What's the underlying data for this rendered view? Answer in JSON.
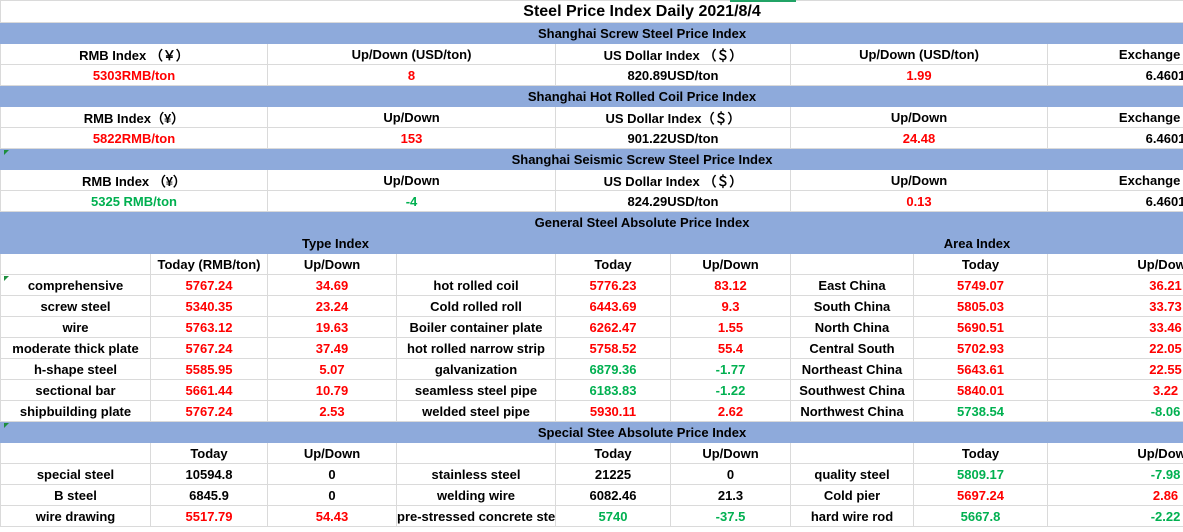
{
  "title": "Steel Price Index Daily  2021/8/4",
  "sections": {
    "screw": {
      "header": "Shanghai Screw Steel Price Index",
      "labels": [
        "RMB Index （￥）",
        "Up/Down (USD/ton)",
        "US Dollar Index （＄）",
        "Up/Down (USD/ton)",
        "Exchange Rate"
      ],
      "values": [
        "5303RMB/ton",
        "8",
        "820.89USD/ton",
        "1.99",
        "6.4601"
      ]
    },
    "hrc": {
      "header": "Shanghai Hot Rolled Coil Price Index",
      "labels": [
        "RMB Index（¥）",
        "Up/Down",
        "US Dollar Index（＄）",
        "Up/Down",
        "Exchange Rate"
      ],
      "values": [
        "5822RMB/ton",
        "153",
        "901.22USD/ton",
        "24.48",
        "6.4601"
      ]
    },
    "seismic": {
      "header": "Shanghai Seismic Screw Steel Price Index",
      "labels": [
        "RMB Index （¥）",
        "Up/Down",
        "US Dollar Index （＄）",
        "Up/Down",
        "Exchange Rate"
      ],
      "values": [
        "5325 RMB/ton",
        "-4",
        "824.29USD/ton",
        "0.13",
        "6.4601"
      ]
    }
  },
  "general": {
    "header": "General Steel Absolute Price Index",
    "type_index": "Type Index",
    "area_index": "Area Index",
    "col_today_rmb": "Today (RMB/ton)",
    "col_today": "Today",
    "col_updown": "Up/Down",
    "type_rows": [
      {
        "name": "comprehensive",
        "today": "5767.24",
        "change": "34.69"
      },
      {
        "name": "screw steel",
        "today": "5340.35",
        "change": "23.24"
      },
      {
        "name": "wire",
        "today": "5763.12",
        "change": "19.63"
      },
      {
        "name": "moderate thick plate",
        "today": "5767.24",
        "change": "37.49"
      },
      {
        "name": "h-shape steel",
        "today": "5585.95",
        "change": "5.07"
      },
      {
        "name": "sectional bar",
        "today": "5661.44",
        "change": "10.79"
      },
      {
        "name": "shipbuilding plate",
        "today": "5767.24",
        "change": "2.53"
      }
    ],
    "product_rows": [
      {
        "name": "hot rolled coil",
        "today": "5776.23",
        "change": "83.12"
      },
      {
        "name": "Cold rolled roll",
        "today": "6443.69",
        "change": "9.3"
      },
      {
        "name": "Boiler container plate",
        "today": "6262.47",
        "change": "1.55"
      },
      {
        "name": "hot rolled narrow strip",
        "today": "5758.52",
        "change": "55.4"
      },
      {
        "name": "galvanization",
        "today": "6879.36",
        "change": "-1.77"
      },
      {
        "name": "seamless steel pipe",
        "today": "6183.83",
        "change": "-1.22"
      },
      {
        "name": "welded steel pipe",
        "today": "5930.11",
        "change": "2.62"
      }
    ],
    "area_rows": [
      {
        "name": "East China",
        "today": "5749.07",
        "change": "36.21"
      },
      {
        "name": "South China",
        "today": "5805.03",
        "change": "33.73"
      },
      {
        "name": "North China",
        "today": "5690.51",
        "change": "33.46"
      },
      {
        "name": "Central South",
        "today": "5702.93",
        "change": "22.05"
      },
      {
        "name": "Northeast China",
        "today": "5643.61",
        "change": "22.55"
      },
      {
        "name": "Southwest China",
        "today": "5840.01",
        "change": "3.22"
      },
      {
        "name": "Northwest China",
        "today": "5738.54",
        "change": "-8.06"
      }
    ]
  },
  "special": {
    "header": "Special Stee Absolute Price Index",
    "col_today": "Today",
    "col_updown": "Up/Down",
    "rows_a": [
      {
        "name": "special steel",
        "today": "10594.8",
        "change": "0"
      },
      {
        "name": "B steel",
        "today": "6845.9",
        "change": "0"
      },
      {
        "name": "wire drawing",
        "today": "5517.79",
        "change": "54.43"
      }
    ],
    "rows_b": [
      {
        "name": "stainless steel",
        "today": "21225",
        "change": "0"
      },
      {
        "name": "welding wire",
        "today": "6082.46",
        "change": "21.3"
      },
      {
        "name": "pre-stressed concrete stee",
        "today": "5740",
        "change": "-37.5"
      }
    ],
    "rows_c": [
      {
        "name": "quality steel",
        "today": "5809.17",
        "change": "-7.98"
      },
      {
        "name": "Cold pier",
        "today": "5697.24",
        "change": "2.86"
      },
      {
        "name": "hard wire rod",
        "today": "5667.8",
        "change": "-2.22"
      }
    ]
  },
  "colors": {
    "up": "#ff0000",
    "down": "#00b050",
    "band": "#8eaadb",
    "neutral": "#000000"
  }
}
